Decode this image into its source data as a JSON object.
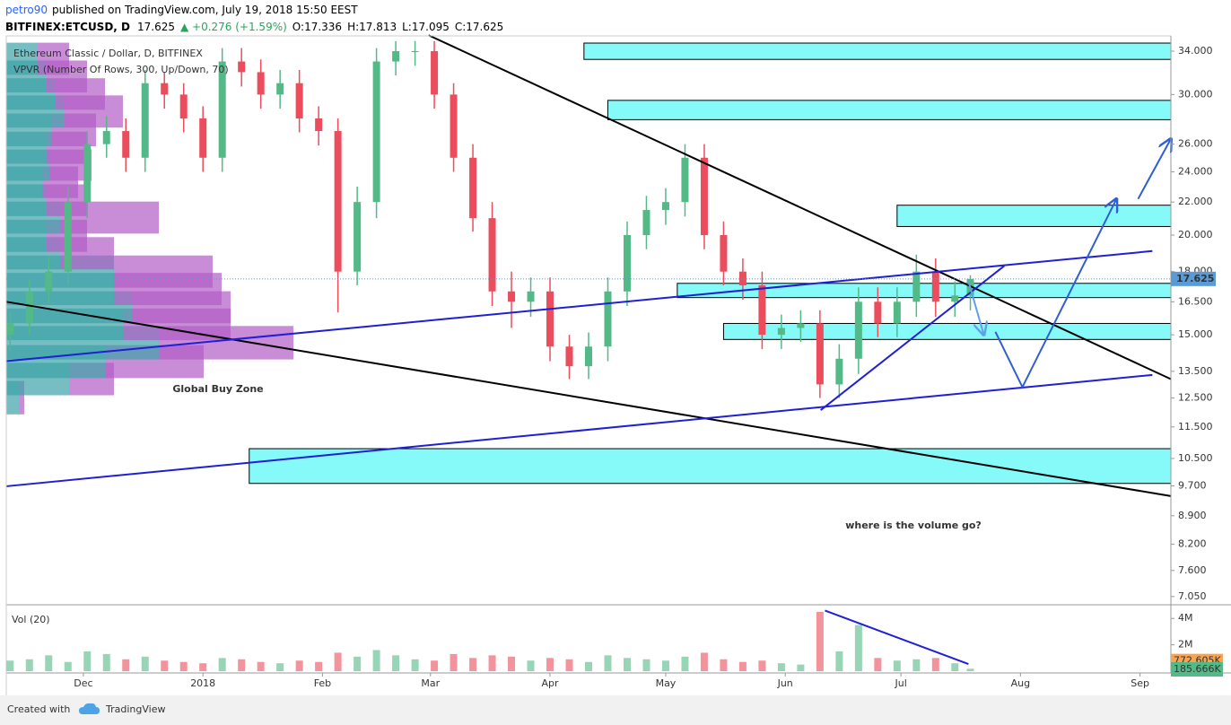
{
  "header": {
    "author": "petro90",
    "published": "published on TradingView.com, July 19, 2018 15:50 EEST",
    "symbol": "BITFINEX:ETCUSD, D",
    "price": "17.625",
    "change": "▲ +0.276 (+1.59%)",
    "ohlc": [
      "O:17.336",
      "H:17.813",
      "L:17.095",
      "C:17.625"
    ]
  },
  "footer": {
    "created": "Created with",
    "brand": "TradingView"
  },
  "chart_data": {
    "type": "candlestick",
    "title": "Ethereum Classic / Dollar, D, BITFINEX",
    "annotations": [
      "Global Buy Zone",
      "where is the volume go?"
    ],
    "x": [
      -19,
      -14,
      -9,
      -4,
      1,
      6,
      11,
      16,
      21,
      26,
      31,
      36,
      41,
      46,
      51,
      56,
      61,
      66,
      71,
      76,
      81,
      86,
      91,
      96,
      101,
      106,
      111,
      116,
      121,
      126,
      131,
      136,
      141,
      146,
      151,
      156,
      161,
      166,
      171,
      176,
      181,
      186,
      191,
      196,
      201,
      206,
      211,
      216,
      221,
      226,
      230
    ],
    "open": [
      15,
      15.5,
      17,
      18,
      22,
      26,
      27,
      25,
      31,
      30,
      28,
      25,
      33,
      32,
      30,
      31,
      28,
      27,
      18,
      22,
      33,
      34,
      34,
      30,
      25,
      21,
      17,
      16.5,
      17,
      14.5,
      13.7,
      14.5,
      17,
      20,
      21.5,
      22,
      25,
      20,
      18,
      17.3,
      15,
      15.3,
      15.5,
      13,
      14,
      16.5,
      15.5,
      16.5,
      18,
      16.5,
      16.8
    ],
    "high": [
      16,
      17.6,
      18.8,
      23,
      27,
      28.2,
      28,
      32.2,
      32,
      31,
      29,
      34.3,
      34.3,
      33.2,
      32.2,
      32.2,
      29,
      28,
      23,
      34.3,
      35,
      35,
      35,
      31,
      26,
      22,
      18,
      17.7,
      17.7,
      15,
      15.1,
      17.7,
      20.8,
      22.4,
      22.9,
      26,
      26,
      20.8,
      18.7,
      18,
      15.9,
      16.1,
      16.1,
      14.6,
      17.2,
      17.2,
      17.2,
      18.9,
      18.7,
      17.5,
      17.813
    ],
    "low": [
      14.3,
      15,
      16.4,
      17.3,
      21,
      25,
      24,
      24,
      28.8,
      26.9,
      24,
      24,
      30.7,
      28.8,
      28.8,
      26.9,
      25.9,
      16,
      17.3,
      21,
      31.7,
      32.6,
      28.8,
      24,
      20.2,
      16.3,
      15.3,
      15.8,
      13.9,
      13.2,
      13.2,
      13.9,
      16.3,
      19.2,
      20.6,
      21.1,
      19.2,
      17.3,
      16.6,
      14.4,
      14.4,
      14.7,
      12.5,
      12.5,
      13.4,
      14.9,
      14.9,
      15.8,
      15.8,
      15.8,
      16.1
    ],
    "close": [
      15.5,
      17,
      18,
      22,
      26,
      27,
      25,
      31,
      30,
      28,
      25,
      33,
      32,
      30,
      31,
      28,
      27,
      18,
      22,
      33,
      34,
      34,
      30,
      25,
      21,
      17,
      16.5,
      17,
      14.5,
      13.7,
      14.5,
      17,
      20,
      21.5,
      22,
      25,
      20,
      18,
      17.3,
      15,
      15.3,
      15.5,
      13,
      14,
      16.5,
      15.5,
      16.5,
      18,
      16.5,
      16.8,
      17.625
    ],
    "up_color": "#53b987",
    "down_color": "#eb4d5c",
    "xlim": [
      -20,
      282
    ],
    "xticks": [
      {
        "value": 0,
        "label": "Dec"
      },
      {
        "value": 31,
        "label": "2018"
      },
      {
        "value": 62,
        "label": "Feb"
      },
      {
        "value": 90,
        "label": "Mar"
      },
      {
        "value": 121,
        "label": "Apr"
      },
      {
        "value": 151,
        "label": "May"
      },
      {
        "value": 182,
        "label": "Jun"
      },
      {
        "value": 212,
        "label": "Jul"
      },
      {
        "value": 243,
        "label": "Aug"
      },
      {
        "value": 274,
        "label": "Sep"
      }
    ],
    "ylim": [
      6.92,
      35.53
    ],
    "log_scale": true,
    "yticks": [
      {
        "value": 7.05,
        "label": "7.050"
      },
      {
        "value": 7.6,
        "label": "7.600"
      },
      {
        "value": 8.2,
        "label": "8.200"
      },
      {
        "value": 8.9,
        "label": "8.900"
      },
      {
        "value": 9.7,
        "label": "9.700"
      },
      {
        "value": 10.5,
        "label": "10.500"
      },
      {
        "value": 11.5,
        "label": "11.500"
      },
      {
        "value": 12.5,
        "label": "12.500"
      },
      {
        "value": 13.5,
        "label": "13.500"
      },
      {
        "value": 15,
        "label": "15.000"
      },
      {
        "value": 16.5,
        "label": "16.500"
      },
      {
        "value": 18,
        "label": "18.000"
      },
      {
        "value": 20,
        "label": "20.000"
      },
      {
        "value": 22,
        "label": "22.000"
      },
      {
        "value": 24,
        "label": "24.000"
      },
      {
        "value": 26,
        "label": "26.000"
      },
      {
        "value": 30,
        "label": "30.000"
      },
      {
        "value": 34,
        "label": "34.000"
      }
    ],
    "last_price": 17.625,
    "last_color": "#5b9bd5",
    "vpvr": {
      "label": "VPVR (Number Of Rows, 300, Up/Down, 70)",
      "prices": [
        12.8,
        13.5,
        14.2,
        15,
        15.8,
        16.6,
        17.5,
        18.4,
        19.4,
        20.4,
        21.5,
        22.6,
        23.8,
        25,
        26.3,
        27.7,
        29.2,
        30.7,
        32.3,
        34
      ],
      "up": [
        14,
        70,
        110,
        170,
        130,
        140,
        120,
        120,
        60,
        45,
        60,
        45,
        40,
        48,
        45,
        50,
        65,
        55,
        45,
        35
      ],
      "down": [
        6,
        50,
        110,
        150,
        120,
        110,
        120,
        110,
        60,
        45,
        110,
        45,
        40,
        47,
        45,
        50,
        65,
        55,
        45,
        35
      ],
      "up_color": "#3ca3a8",
      "down_color": "#b05cc4"
    },
    "zones": [
      {
        "x0": 129.8,
        "y0": 33.2,
        "y1": 34.8
      },
      {
        "x0": 136,
        "y0": 27.9,
        "y1": 29.5
      },
      {
        "x0": 211,
        "y0": 20.5,
        "y1": 21.8
      },
      {
        "x0": 154,
        "y0": 16.7,
        "y1": 17.4
      },
      {
        "x0": 166,
        "y0": 14.8,
        "y1": 15.5
      },
      {
        "x0": 43,
        "y0": 9.77,
        "y1": 10.8
      }
    ],
    "zone_color": "#86f9f9",
    "lines": [
      {
        "color": "#000000",
        "x": [
          89.5,
          282
        ],
        "y": [
          35.6,
          13.2
        ]
      },
      {
        "color": "#000000",
        "x": [
          -20,
          282
        ],
        "y": [
          16.5,
          9.42
        ]
      },
      {
        "color": "#1f1fd6",
        "x": [
          -20,
          277.2
        ],
        "y": [
          13.9,
          19.1
        ]
      },
      {
        "color": "#1f1fd6",
        "x": [
          -20,
          277.2
        ],
        "y": [
          9.69,
          13.36
        ]
      },
      {
        "color": "#1f1fd6",
        "x": [
          191.2,
          238.8
        ],
        "y": [
          12.07,
          18.3
        ]
      }
    ],
    "arrows": [
      {
        "color": "#2f5fd0",
        "x": [
          236.5,
          243.5,
          267.9
        ],
        "y": [
          15.13,
          12.9,
          22.2
        ]
      },
      {
        "color": "#2f5fd0",
        "x": [
          273.5,
          282
        ],
        "y": [
          22.2,
          26.4
        ]
      },
      {
        "color": "#5fa0e8",
        "x": [
          229.5,
          233.5
        ],
        "y": [
          17.5,
          15
        ]
      }
    ],
    "volume": {
      "title": "Vol (20)",
      "values": [
        800000,
        900000,
        1200000,
        700000,
        1500000,
        1300000,
        900000,
        1100000,
        800000,
        700000,
        600000,
        1000000,
        900000,
        700000,
        600000,
        800000,
        700000,
        1400000,
        1100000,
        1600000,
        1200000,
        900000,
        800000,
        1300000,
        1000000,
        1200000,
        1100000,
        800000,
        1000000,
        900000,
        700000,
        1200000,
        1000000,
        900000,
        800000,
        1100000,
        1400000,
        900000,
        700000,
        800000,
        600000,
        500000,
        4500000,
        1500000,
        3500000,
        1000000,
        800000,
        900000,
        1000000,
        600000,
        185666
      ],
      "ylim": [
        0,
        4900000
      ],
      "yticks": [
        {
          "value": 4000000,
          "label": "4M"
        },
        {
          "value": 2000000,
          "label": "2M"
        }
      ],
      "ma_last": {
        "value": 772605,
        "label": "772.605K"
      },
      "ma_color": "#f7a350",
      "last_label": "185.666K",
      "lines": [
        {
          "color": "#1f1fd6",
          "x": [
            192.3,
            229.5
          ],
          "y": [
            4600000,
            540000
          ]
        }
      ]
    }
  }
}
